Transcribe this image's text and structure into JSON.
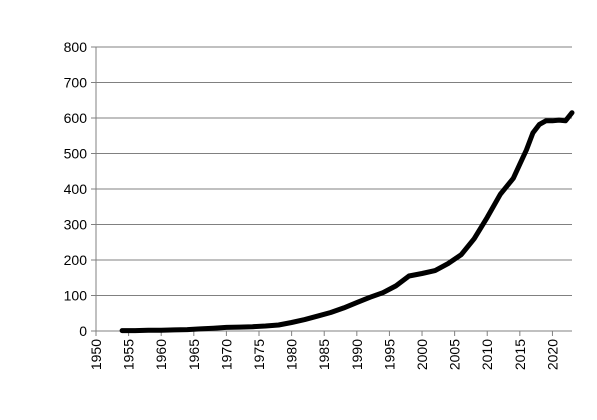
{
  "chart_data": {
    "type": "line",
    "title": "",
    "xlabel": "",
    "ylabel": "",
    "xlim": [
      1950,
      2023
    ],
    "ylim": [
      0,
      800
    ],
    "grid": "horizontal",
    "legend": "none",
    "line_color": "#000000",
    "grid_color": "#808080",
    "y_ticks": [
      "0",
      "100",
      "200",
      "300",
      "400",
      "500",
      "600",
      "700",
      "800"
    ],
    "x_ticks": [
      "1950",
      "1955",
      "1960",
      "1965",
      "1970",
      "1975",
      "1980",
      "1985",
      "1990",
      "1995",
      "2000",
      "2005",
      "2010",
      "2015",
      "2020"
    ],
    "series": [
      {
        "x": [
          1954,
          1956,
          1958,
          1960,
          1962,
          1964,
          1966,
          1968,
          1970,
          1972,
          1974,
          1976,
          1978,
          1980,
          1982,
          1984,
          1986,
          1988,
          1990,
          1992,
          1994,
          1996,
          1998,
          2000,
          2002,
          2004,
          2006,
          2008,
          2010,
          2012,
          2014,
          2015,
          2016,
          2017,
          2018,
          2019,
          2020,
          2021,
          2022,
          2023
        ],
        "values": [
          1,
          1,
          2,
          2,
          3,
          4,
          6,
          8,
          10,
          11,
          12,
          14,
          17,
          24,
          32,
          42,
          52,
          65,
          80,
          95,
          108,
          127,
          155,
          162,
          170,
          190,
          215,
          260,
          320,
          385,
          430,
          470,
          510,
          558,
          582,
          592,
          592,
          594,
          592,
          615
        ]
      }
    ]
  }
}
